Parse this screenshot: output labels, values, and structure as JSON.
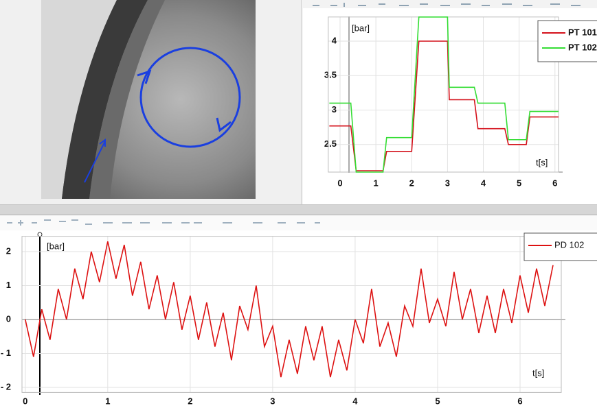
{
  "chart_data": [
    {
      "type": "line",
      "x_label": "t[s]",
      "y_label": "[bar]",
      "xlim": [
        -0.33,
        6.1
      ],
      "ylim": [
        2.1,
        4.35
      ],
      "xticks": [
        0,
        1,
        2,
        3,
        4,
        5,
        6
      ],
      "yticks": [
        2.5,
        3,
        3.5,
        4
      ],
      "grid": true,
      "legend": "top-right",
      "series": [
        {
          "name": "PT 101",
          "color": "#d4101a",
          "x": [
            -0.3,
            0.3,
            0.45,
            1.2,
            1.3,
            2.0,
            2.2,
            3.0,
            3.05,
            3.75,
            3.85,
            4.6,
            4.7,
            5.2,
            5.3,
            6.1
          ],
          "values": [
            2.77,
            2.77,
            2.12,
            2.12,
            2.4,
            2.4,
            4.0,
            4.0,
            3.15,
            3.15,
            2.73,
            2.73,
            2.5,
            2.5,
            2.9,
            2.9
          ]
        },
        {
          "name": "PT 102",
          "color": "#33dd33",
          "x": [
            -0.3,
            0.3,
            0.45,
            1.2,
            1.3,
            2.0,
            2.2,
            3.0,
            3.05,
            3.75,
            3.85,
            4.6,
            4.7,
            5.2,
            5.3,
            6.1
          ],
          "values": [
            3.1,
            3.1,
            2.1,
            2.1,
            2.6,
            2.6,
            4.35,
            4.35,
            3.33,
            3.33,
            3.1,
            3.1,
            2.57,
            2.57,
            2.98,
            2.98
          ]
        }
      ]
    },
    {
      "type": "line",
      "x_label": "t[s]",
      "y_label": "[bar]",
      "xlim": [
        -0.04,
        6.5
      ],
      "ylim": [
        -2.15,
        2.45
      ],
      "xticks": [
        0,
        1,
        2,
        3,
        4,
        5,
        6
      ],
      "yticks": [
        {
          "value": -2,
          "label": "- 2"
        },
        {
          "value": -1,
          "label": "- 1"
        },
        0,
        1,
        2
      ],
      "grid": true,
      "legend": "top-right",
      "x": [
        0,
        0.1,
        0.2,
        0.3,
        0.4,
        0.5,
        0.6,
        0.7,
        0.8,
        0.9,
        1.0,
        1.1,
        1.2,
        1.3,
        1.4,
        1.5,
        1.6,
        1.7,
        1.8,
        1.9,
        2.0,
        2.1,
        2.2,
        2.3,
        2.4,
        2.5,
        2.6,
        2.7,
        2.8,
        2.9,
        3.0,
        3.1,
        3.2,
        3.3,
        3.4,
        3.5,
        3.6,
        3.7,
        3.8,
        3.9,
        4.0,
        4.1,
        4.2,
        4.3,
        4.4,
        4.5,
        4.6,
        4.7,
        4.8,
        4.9,
        5.0,
        5.1,
        5.2,
        5.3,
        5.4,
        5.5,
        5.6,
        5.7,
        5.8,
        5.9,
        6.0,
        6.1,
        6.2,
        6.3,
        6.4
      ],
      "series": [
        {
          "name": "PD 102",
          "color": "#dd1111",
          "values": [
            0.0,
            -1.1,
            0.3,
            -0.6,
            0.9,
            0.0,
            1.5,
            0.6,
            2.0,
            1.1,
            2.3,
            1.2,
            2.2,
            0.7,
            1.7,
            0.3,
            1.3,
            0.0,
            1.1,
            -0.3,
            0.7,
            -0.6,
            0.5,
            -0.8,
            0.2,
            -1.2,
            0.4,
            -0.3,
            1.0,
            -0.8,
            -0.2,
            -1.7,
            -0.6,
            -1.6,
            -0.2,
            -1.2,
            -0.2,
            -1.7,
            -0.6,
            -1.5,
            0.0,
            -0.7,
            0.9,
            -0.8,
            -0.1,
            -1.1,
            0.4,
            -0.2,
            1.5,
            -0.1,
            0.6,
            -0.2,
            1.4,
            0.0,
            0.9,
            -0.4,
            0.7,
            -0.4,
            0.9,
            -0.1,
            1.3,
            0.2,
            1.5,
            0.4,
            1.6
          ]
        }
      ]
    }
  ]
}
